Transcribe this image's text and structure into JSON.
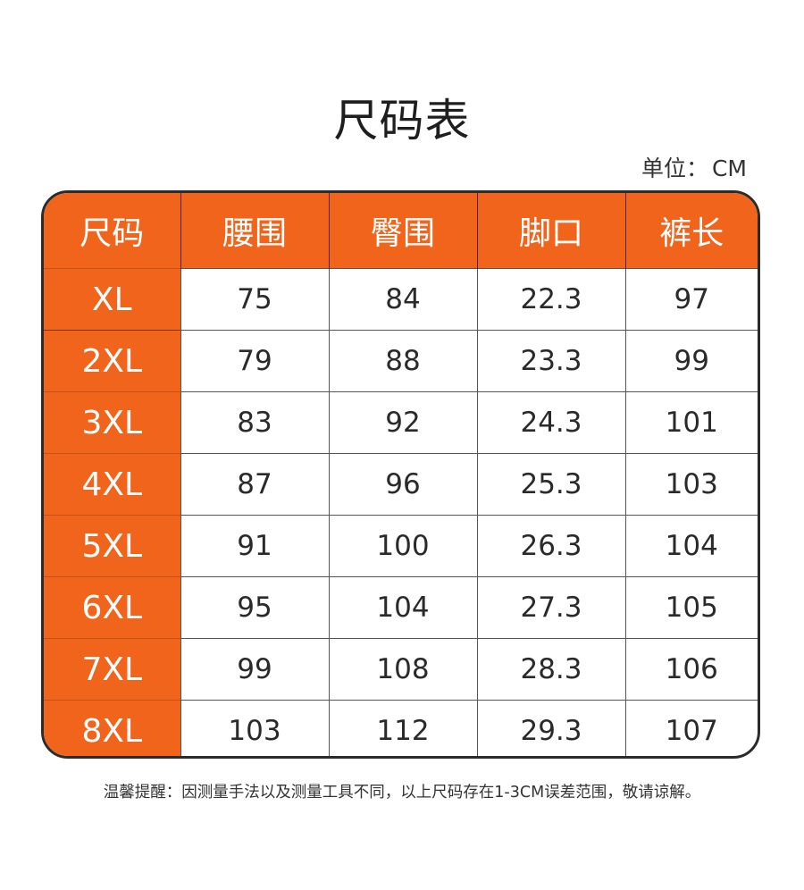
{
  "title": "尺码表",
  "unit": {
    "label": "单位：",
    "value": "CM"
  },
  "table": {
    "headers": [
      "尺码",
      "腰围",
      "臀围",
      "脚口",
      "裤长"
    ],
    "rows": [
      [
        "XL",
        "75",
        "84",
        "22.3",
        "97"
      ],
      [
        "2XL",
        "79",
        "88",
        "23.3",
        "99"
      ],
      [
        "3XL",
        "83",
        "92",
        "24.3",
        "101"
      ],
      [
        "4XL",
        "87",
        "96",
        "25.3",
        "103"
      ],
      [
        "5XL",
        "91",
        "100",
        "26.3",
        "104"
      ],
      [
        "6XL",
        "95",
        "104",
        "27.3",
        "105"
      ],
      [
        "7XL",
        "99",
        "108",
        "28.3",
        "106"
      ],
      [
        "8XL",
        "103",
        "112",
        "29.3",
        "107"
      ]
    ]
  },
  "note": "温馨提醒：因测量手法以及测量工具不同，以上尺码存在1-3CM误差范围，敬请谅解。",
  "colors": {
    "accent": "#f0641c",
    "border": "#2b2b2b",
    "text": "#2a2a2a"
  }
}
